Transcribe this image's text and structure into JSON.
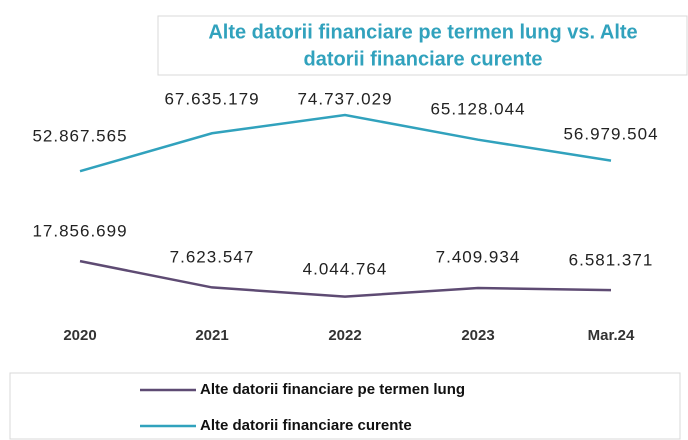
{
  "chart_data": {
    "type": "line",
    "title": [
      "Alte datorii financiare pe termen lung vs. Alte",
      "datorii financiare curente"
    ],
    "categories": [
      "2020",
      "2021",
      "2022",
      "2023",
      "Mar.24"
    ],
    "series": [
      {
        "name": "Alte datorii financiare pe termen lung",
        "color": "#5e4b73",
        "values": [
          17856699,
          7623547,
          4044764,
          7409934,
          6581371
        ],
        "value_labels": [
          "17.856.699",
          "7.623.547",
          "4.044.764",
          "7.409.934",
          "6.581.371"
        ]
      },
      {
        "name": "Alte datorii financiare curente",
        "color": "#31a2bd",
        "values": [
          52867565,
          67635179,
          74737029,
          65128044,
          56979504
        ],
        "value_labels": [
          "52.867.565",
          "67.635.179",
          "74.737.029",
          "65.128.044",
          "56.979.504"
        ]
      }
    ]
  }
}
